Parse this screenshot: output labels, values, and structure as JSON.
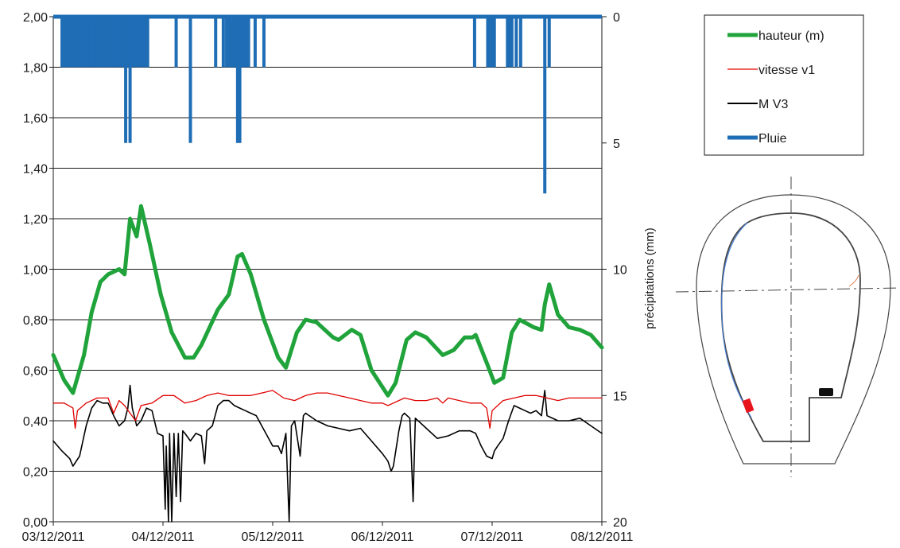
{
  "chart_data": {
    "type": "line",
    "xlabel": "",
    "ylabel": "",
    "y2label": "précipitations (mm)",
    "x_ticks": [
      "03/12/2011",
      "04/12/2011",
      "05/12/2011",
      "06/12/2011",
      "07/12/2011",
      "08/12/2011"
    ],
    "xlim": [
      0,
      5
    ],
    "ylim": [
      0,
      2
    ],
    "y_ticks": [
      "0,00",
      "0,20",
      "0,40",
      "0,60",
      "0,80",
      "1,00",
      "1,20",
      "1,40",
      "1,60",
      "1,80",
      "2,00"
    ],
    "y2lim": [
      0,
      20
    ],
    "y2_inverted": true,
    "y2_ticks": [
      "0",
      "5",
      "10",
      "15",
      "20"
    ],
    "grid": "horizontal",
    "legend_position": "top-right",
    "series": [
      {
        "name": "hauteur (m)",
        "color": "#1fa33a",
        "axis": "left",
        "points": [
          [
            0.0,
            0.66
          ],
          [
            0.1,
            0.56
          ],
          [
            0.18,
            0.51
          ],
          [
            0.28,
            0.66
          ],
          [
            0.35,
            0.83
          ],
          [
            0.43,
            0.95
          ],
          [
            0.5,
            0.98
          ],
          [
            0.55,
            0.99
          ],
          [
            0.6,
            1.0
          ],
          [
            0.65,
            0.98
          ],
          [
            0.7,
            1.2
          ],
          [
            0.76,
            1.13
          ],
          [
            0.8,
            1.25
          ],
          [
            0.88,
            1.1
          ],
          [
            0.98,
            0.9
          ],
          [
            1.08,
            0.75
          ],
          [
            1.2,
            0.65
          ],
          [
            1.28,
            0.65
          ],
          [
            1.35,
            0.7
          ],
          [
            1.5,
            0.84
          ],
          [
            1.6,
            0.9
          ],
          [
            1.68,
            1.05
          ],
          [
            1.72,
            1.06
          ],
          [
            1.8,
            0.98
          ],
          [
            1.92,
            0.8
          ],
          [
            2.05,
            0.65
          ],
          [
            2.12,
            0.61
          ],
          [
            2.22,
            0.75
          ],
          [
            2.3,
            0.8
          ],
          [
            2.4,
            0.79
          ],
          [
            2.55,
            0.73
          ],
          [
            2.6,
            0.72
          ],
          [
            2.72,
            0.76
          ],
          [
            2.8,
            0.74
          ],
          [
            2.9,
            0.6
          ],
          [
            3.05,
            0.5
          ],
          [
            3.12,
            0.55
          ],
          [
            3.22,
            0.72
          ],
          [
            3.3,
            0.75
          ],
          [
            3.4,
            0.73
          ],
          [
            3.55,
            0.66
          ],
          [
            3.65,
            0.68
          ],
          [
            3.75,
            0.73
          ],
          [
            3.82,
            0.73
          ],
          [
            3.85,
            0.74
          ],
          [
            3.95,
            0.63
          ],
          [
            4.02,
            0.55
          ],
          [
            4.1,
            0.57
          ],
          [
            4.18,
            0.75
          ],
          [
            4.25,
            0.8
          ],
          [
            4.38,
            0.77
          ],
          [
            4.45,
            0.76
          ],
          [
            4.48,
            0.86
          ],
          [
            4.52,
            0.94
          ],
          [
            4.6,
            0.82
          ],
          [
            4.7,
            0.77
          ],
          [
            4.8,
            0.76
          ],
          [
            4.9,
            0.74
          ],
          [
            5.0,
            0.69
          ]
        ]
      },
      {
        "name": "vitesse v1",
        "color": "#e00000",
        "axis": "left",
        "points": [
          [
            0.0,
            0.47
          ],
          [
            0.1,
            0.47
          ],
          [
            0.18,
            0.45
          ],
          [
            0.2,
            0.37
          ],
          [
            0.22,
            0.44
          ],
          [
            0.3,
            0.47
          ],
          [
            0.4,
            0.49
          ],
          [
            0.5,
            0.49
          ],
          [
            0.55,
            0.43
          ],
          [
            0.6,
            0.48
          ],
          [
            0.65,
            0.46
          ],
          [
            0.75,
            0.4
          ],
          [
            0.8,
            0.46
          ],
          [
            0.9,
            0.47
          ],
          [
            1.0,
            0.5
          ],
          [
            1.1,
            0.5
          ],
          [
            1.2,
            0.47
          ],
          [
            1.3,
            0.48
          ],
          [
            1.4,
            0.5
          ],
          [
            1.5,
            0.51
          ],
          [
            1.6,
            0.5
          ],
          [
            1.7,
            0.5
          ],
          [
            1.8,
            0.5
          ],
          [
            1.9,
            0.51
          ],
          [
            2.0,
            0.52
          ],
          [
            2.1,
            0.49
          ],
          [
            2.2,
            0.48
          ],
          [
            2.3,
            0.5
          ],
          [
            2.4,
            0.51
          ],
          [
            2.5,
            0.51
          ],
          [
            2.6,
            0.5
          ],
          [
            2.7,
            0.49
          ],
          [
            2.8,
            0.48
          ],
          [
            2.9,
            0.47
          ],
          [
            3.0,
            0.47
          ],
          [
            3.05,
            0.46
          ],
          [
            3.15,
            0.48
          ],
          [
            3.2,
            0.49
          ],
          [
            3.3,
            0.48
          ],
          [
            3.4,
            0.48
          ],
          [
            3.5,
            0.49
          ],
          [
            3.55,
            0.47
          ],
          [
            3.6,
            0.49
          ],
          [
            3.7,
            0.48
          ],
          [
            3.8,
            0.47
          ],
          [
            3.9,
            0.47
          ],
          [
            3.95,
            0.45
          ],
          [
            3.98,
            0.37
          ],
          [
            4.0,
            0.44
          ],
          [
            4.1,
            0.48
          ],
          [
            4.2,
            0.49
          ],
          [
            4.3,
            0.5
          ],
          [
            4.4,
            0.5
          ],
          [
            4.5,
            0.49
          ],
          [
            4.6,
            0.48
          ],
          [
            4.7,
            0.49
          ],
          [
            4.8,
            0.49
          ],
          [
            4.9,
            0.49
          ],
          [
            5.0,
            0.49
          ]
        ]
      },
      {
        "name": "M V3",
        "color": "#000000",
        "axis": "left",
        "points": [
          [
            0.0,
            0.32
          ],
          [
            0.08,
            0.28
          ],
          [
            0.15,
            0.25
          ],
          [
            0.18,
            0.22
          ],
          [
            0.24,
            0.26
          ],
          [
            0.3,
            0.38
          ],
          [
            0.35,
            0.45
          ],
          [
            0.4,
            0.48
          ],
          [
            0.45,
            0.47
          ],
          [
            0.5,
            0.47
          ],
          [
            0.55,
            0.42
          ],
          [
            0.6,
            0.38
          ],
          [
            0.65,
            0.4
          ],
          [
            0.68,
            0.45
          ],
          [
            0.7,
            0.54
          ],
          [
            0.72,
            0.45
          ],
          [
            0.76,
            0.38
          ],
          [
            0.8,
            0.4
          ],
          [
            0.85,
            0.45
          ],
          [
            0.9,
            0.44
          ],
          [
            0.95,
            0.35
          ],
          [
            1.0,
            0.34
          ],
          [
            1.02,
            0.05
          ],
          [
            1.03,
            0.3
          ],
          [
            1.05,
            0.0
          ],
          [
            1.06,
            0.35
          ],
          [
            1.08,
            0.0
          ],
          [
            1.1,
            0.35
          ],
          [
            1.12,
            0.1
          ],
          [
            1.14,
            0.35
          ],
          [
            1.16,
            0.08
          ],
          [
            1.18,
            0.36
          ],
          [
            1.2,
            0.35
          ],
          [
            1.25,
            0.32
          ],
          [
            1.3,
            0.35
          ],
          [
            1.35,
            0.34
          ],
          [
            1.38,
            0.23
          ],
          [
            1.4,
            0.36
          ],
          [
            1.45,
            0.38
          ],
          [
            1.5,
            0.46
          ],
          [
            1.55,
            0.48
          ],
          [
            1.6,
            0.48
          ],
          [
            1.65,
            0.46
          ],
          [
            1.7,
            0.45
          ],
          [
            1.75,
            0.44
          ],
          [
            1.8,
            0.43
          ],
          [
            1.85,
            0.42
          ],
          [
            1.9,
            0.38
          ],
          [
            1.95,
            0.34
          ],
          [
            2.0,
            0.3
          ],
          [
            2.05,
            0.3
          ],
          [
            2.08,
            0.27
          ],
          [
            2.12,
            0.35
          ],
          [
            2.15,
            0.0
          ],
          [
            2.17,
            0.38
          ],
          [
            2.2,
            0.4
          ],
          [
            2.25,
            0.26
          ],
          [
            2.28,
            0.42
          ],
          [
            2.3,
            0.43
          ],
          [
            2.4,
            0.4
          ],
          [
            2.5,
            0.38
          ],
          [
            2.6,
            0.37
          ],
          [
            2.7,
            0.36
          ],
          [
            2.8,
            0.37
          ],
          [
            2.9,
            0.32
          ],
          [
            3.0,
            0.27
          ],
          [
            3.05,
            0.24
          ],
          [
            3.08,
            0.2
          ],
          [
            3.1,
            0.22
          ],
          [
            3.15,
            0.36
          ],
          [
            3.18,
            0.42
          ],
          [
            3.2,
            0.43
          ],
          [
            3.25,
            0.41
          ],
          [
            3.28,
            0.08
          ],
          [
            3.3,
            0.41
          ],
          [
            3.4,
            0.37
          ],
          [
            3.5,
            0.33
          ],
          [
            3.6,
            0.34
          ],
          [
            3.7,
            0.36
          ],
          [
            3.8,
            0.36
          ],
          [
            3.85,
            0.35
          ],
          [
            3.9,
            0.3
          ],
          [
            3.95,
            0.26
          ],
          [
            4.0,
            0.25
          ],
          [
            4.02,
            0.28
          ],
          [
            4.05,
            0.3
          ],
          [
            4.1,
            0.33
          ],
          [
            4.15,
            0.4
          ],
          [
            4.2,
            0.46
          ],
          [
            4.25,
            0.45
          ],
          [
            4.3,
            0.44
          ],
          [
            4.35,
            0.43
          ],
          [
            4.4,
            0.44
          ],
          [
            4.45,
            0.42
          ],
          [
            4.48,
            0.52
          ],
          [
            4.5,
            0.42
          ],
          [
            4.6,
            0.4
          ],
          [
            4.7,
            0.4
          ],
          [
            4.8,
            0.41
          ],
          [
            4.9,
            0.38
          ],
          [
            5.0,
            0.35
          ]
        ]
      },
      {
        "name": "Pluie",
        "color": "#1f6db5",
        "axis": "right",
        "bars": [
          [
            0.08,
            2
          ],
          [
            0.1,
            2
          ],
          [
            0.12,
            2
          ],
          [
            0.14,
            2
          ],
          [
            0.16,
            2
          ],
          [
            0.18,
            2
          ],
          [
            0.2,
            2
          ],
          [
            0.22,
            2
          ],
          [
            0.24,
            2
          ],
          [
            0.26,
            2
          ],
          [
            0.28,
            2
          ],
          [
            0.3,
            2
          ],
          [
            0.32,
            2
          ],
          [
            0.34,
            2
          ],
          [
            0.36,
            2
          ],
          [
            0.38,
            2
          ],
          [
            0.4,
            2
          ],
          [
            0.42,
            2
          ],
          [
            0.44,
            2
          ],
          [
            0.46,
            2
          ],
          [
            0.48,
            2
          ],
          [
            0.5,
            2
          ],
          [
            0.52,
            2
          ],
          [
            0.54,
            2
          ],
          [
            0.56,
            2
          ],
          [
            0.58,
            2
          ],
          [
            0.6,
            2
          ],
          [
            0.62,
            2
          ],
          [
            0.64,
            2
          ],
          [
            0.66,
            5
          ],
          [
            0.68,
            2
          ],
          [
            0.7,
            5
          ],
          [
            0.72,
            2
          ],
          [
            0.74,
            2
          ],
          [
            0.76,
            2
          ],
          [
            0.78,
            2
          ],
          [
            0.8,
            2
          ],
          [
            0.82,
            2
          ],
          [
            0.84,
            2
          ],
          [
            0.86,
            2
          ],
          [
            1.12,
            2
          ],
          [
            1.25,
            5
          ],
          [
            1.48,
            2
          ],
          [
            1.55,
            2
          ],
          [
            1.58,
            2
          ],
          [
            1.6,
            2
          ],
          [
            1.62,
            2
          ],
          [
            1.64,
            2
          ],
          [
            1.66,
            2
          ],
          [
            1.68,
            5
          ],
          [
            1.7,
            5
          ],
          [
            1.72,
            2
          ],
          [
            1.74,
            2
          ],
          [
            1.76,
            2
          ],
          [
            1.78,
            2
          ],
          [
            1.84,
            2
          ],
          [
            1.92,
            2
          ],
          [
            3.84,
            2
          ],
          [
            3.96,
            2
          ],
          [
            3.98,
            2
          ],
          [
            4.0,
            2
          ],
          [
            4.02,
            2
          ],
          [
            4.14,
            2
          ],
          [
            4.16,
            2
          ],
          [
            4.18,
            2
          ],
          [
            4.22,
            2
          ],
          [
            4.26,
            2
          ],
          [
            4.48,
            7
          ],
          [
            4.52,
            2
          ]
        ]
      }
    ]
  }
}
